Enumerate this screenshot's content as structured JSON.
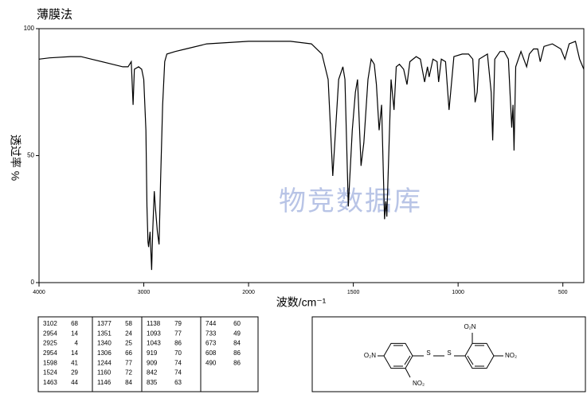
{
  "chart_data": {
    "type": "line",
    "title": "薄膜法",
    "y_label": "透过率 %",
    "x_label": "波数/cm⁻¹",
    "watermark": "物竞数据库",
    "color": "#000000",
    "x": [
      4000,
      3900,
      3700,
      3600,
      3500,
      3300,
      3200,
      3150,
      3120,
      3102,
      3090,
      3050,
      3020,
      3000,
      2980,
      2970,
      2960,
      2954,
      2940,
      2925,
      2915,
      2900,
      2890,
      2870,
      2854,
      2840,
      2820,
      2800,
      2780,
      2700,
      2600,
      2400,
      2200,
      2000,
      1900,
      1800,
      1700,
      1650,
      1620,
      1598,
      1585,
      1570,
      1550,
      1540,
      1524,
      1505,
      1490,
      1480,
      1463,
      1450,
      1430,
      1415,
      1400,
      1390,
      1377,
      1365,
      1351,
      1345,
      1340,
      1320,
      1306,
      1295,
      1280,
      1260,
      1244,
      1230,
      1200,
      1180,
      1160,
      1146,
      1138,
      1120,
      1100,
      1093,
      1080,
      1060,
      1043,
      1020,
      980,
      950,
      930,
      919,
      909,
      900,
      880,
      860,
      842,
      835,
      825,
      800,
      780,
      760,
      744,
      738,
      733,
      725,
      700,
      673,
      660,
      640,
      620,
      608,
      590,
      550,
      510,
      490,
      470,
      440,
      420,
      400
    ],
    "values": [
      88,
      88.5,
      89,
      89,
      88,
      86,
      85,
      85,
      87,
      70,
      84,
      85,
      84,
      80,
      60,
      30,
      16,
      14,
      20,
      5,
      20,
      36,
      30,
      20,
      15,
      40,
      70,
      87,
      90,
      91,
      92,
      94,
      94.5,
      95,
      95,
      95,
      94,
      90,
      80,
      42,
      60,
      80,
      85,
      80,
      30,
      60,
      75,
      80,
      46,
      55,
      80,
      88,
      86,
      78,
      60,
      70,
      25,
      32,
      26,
      80,
      68,
      85,
      86,
      84,
      78,
      87,
      89,
      88,
      79,
      85,
      81,
      88,
      87,
      79,
      88,
      87,
      68,
      89,
      90,
      90,
      88,
      71,
      75,
      88,
      89,
      90,
      75,
      56,
      88,
      91,
      91,
      88,
      61,
      70,
      52,
      85,
      91,
      85,
      90,
      92,
      92,
      87,
      93,
      94,
      92,
      88,
      94,
      95,
      88,
      84
    ],
    "xlim": [
      4000,
      400
    ],
    "xticks": [
      4000,
      3000,
      2000,
      1500,
      1000,
      500
    ],
    "ylim": [
      0,
      100
    ],
    "yticks": [
      0,
      50,
      100
    ]
  },
  "peak_table": [
    [
      [
        3102,
        68
      ],
      [
        2954,
        14
      ],
      [
        2925,
        4
      ],
      [
        2954,
        14
      ],
      [
        1598,
        41
      ],
      [
        1524,
        29
      ],
      [
        1463,
        44
      ]
    ],
    [
      [
        1377,
        58
      ],
      [
        1351,
        24
      ],
      [
        1340,
        25
      ],
      [
        1306,
        66
      ],
      [
        1244,
        77
      ],
      [
        1160,
        72
      ],
      [
        1146,
        84
      ]
    ],
    [
      [
        1138,
        79
      ],
      [
        1093,
        77
      ],
      [
        1043,
        86
      ],
      [
        919,
        70
      ],
      [
        909,
        74
      ],
      [
        842,
        74
      ],
      [
        835,
        63
      ]
    ],
    [
      [
        744,
        60
      ],
      [
        733,
        49
      ],
      [
        673,
        84
      ],
      [
        608,
        86
      ],
      [
        490,
        86
      ]
    ]
  ],
  "structure": {
    "labels": [
      "O₂N",
      "S",
      "S",
      "NO₂",
      "O₂N",
      "NO₂"
    ]
  }
}
